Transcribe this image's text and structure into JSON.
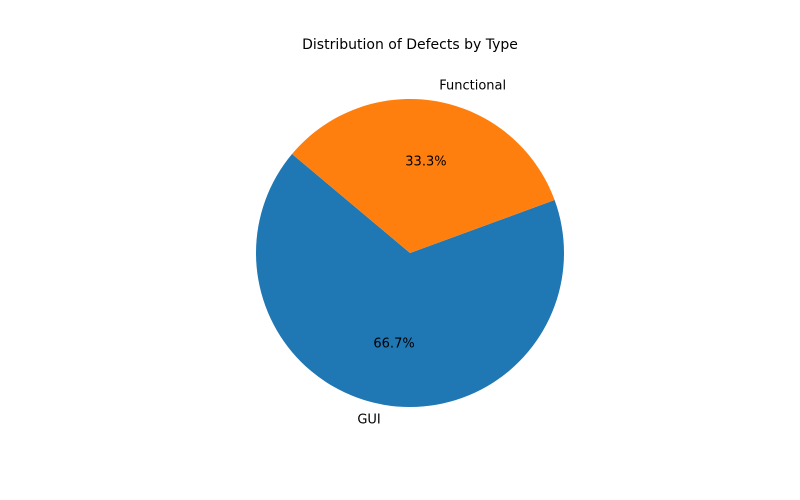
{
  "chart_data": {
    "type": "pie",
    "title": "Distribution of Defects by Type",
    "categories": [
      "GUI",
      "Functional"
    ],
    "values": [
      66.7,
      33.3
    ],
    "percent_labels": [
      "66.7%",
      "33.3%"
    ],
    "colors": [
      "#1f77b4",
      "#ff7f0e"
    ],
    "start_angle_deg": 140,
    "legend": "none"
  }
}
